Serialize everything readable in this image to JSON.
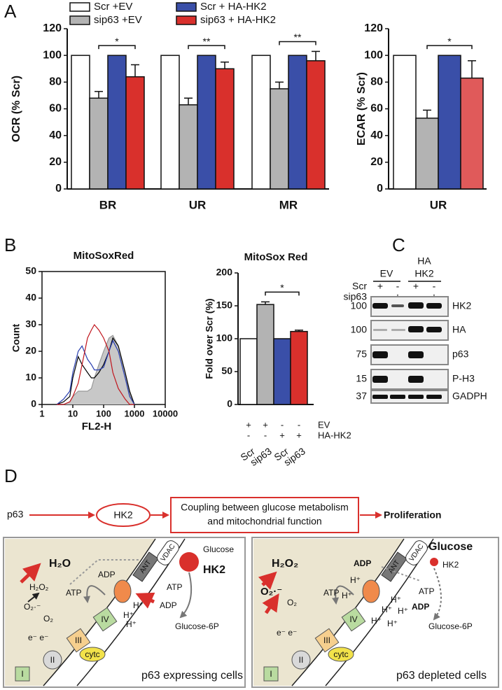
{
  "panel_labels": [
    "A",
    "B",
    "C",
    "D"
  ],
  "chart_data": [
    {
      "type": "bar",
      "y_label": "OCR (% Scr)",
      "categories": [
        "BR",
        "UR",
        "MR"
      ],
      "series": [
        {
          "name": "Scr +EV",
          "color": "#ffffff",
          "values": [
            100,
            100,
            100
          ]
        },
        {
          "name": "sip63 +EV",
          "color": "#b3b3b3",
          "values": [
            68,
            63,
            75
          ],
          "errors": [
            5,
            5,
            5
          ]
        },
        {
          "name": "Scr + HA-HK2",
          "color": "#3a4fa8",
          "values": [
            100,
            100,
            100
          ]
        },
        {
          "name": "sip63 + HA-HK2",
          "color": "#d9302c",
          "values": [
            84,
            90,
            96
          ],
          "errors": [
            9,
            5,
            7
          ]
        }
      ],
      "ylim": [
        0,
        120
      ],
      "yticks": [
        0,
        20,
        40,
        60,
        80,
        100,
        120
      ],
      "significance": [
        "*",
        "**",
        "**"
      ]
    },
    {
      "type": "bar",
      "y_label": "ECAR (% Scr)",
      "categories": [
        "UR"
      ],
      "series": [
        {
          "color": "#ffffff",
          "values": [
            100
          ]
        },
        {
          "color": "#b3b3b3",
          "values": [
            53
          ],
          "errors": [
            6
          ]
        },
        {
          "color": "#3a4fa8",
          "values": [
            100
          ]
        },
        {
          "color": "#e05a5a",
          "values": [
            83
          ],
          "errors": [
            13
          ]
        }
      ],
      "ylim": [
        0,
        120
      ],
      "yticks": [
        0,
        20,
        40,
        60,
        80,
        100,
        120
      ],
      "significance": [
        "*"
      ]
    },
    {
      "type": "line",
      "title": "MitoSoxRed",
      "x_label": "FL2-H",
      "y_label": "Count",
      "xscale": "log",
      "x": [
        3,
        5,
        8,
        10,
        15,
        20,
        30,
        40,
        50,
        70,
        100,
        150,
        200,
        300,
        500,
        700,
        1000
      ],
      "series": [
        {
          "color": "#c8c8c8",
          "filled": true,
          "values": [
            0,
            0,
            1,
            3,
            5,
            5,
            5,
            6,
            10,
            15,
            20,
            25,
            26,
            22,
            12,
            4,
            0
          ]
        },
        {
          "color": "#000000",
          "values": [
            0,
            1,
            3,
            10,
            18,
            15,
            12,
            10,
            10,
            12,
            15,
            20,
            25,
            22,
            12,
            5,
            0
          ]
        },
        {
          "color": "#2a3fb0",
          "values": [
            0,
            2,
            5,
            12,
            20,
            22,
            17,
            15,
            13,
            13,
            14,
            20,
            24,
            20,
            10,
            3,
            0
          ]
        },
        {
          "color": "#c0141c",
          "values": [
            0,
            0,
            1,
            3,
            8,
            15,
            25,
            28,
            30,
            28,
            25,
            20,
            12,
            6,
            2,
            0,
            0
          ]
        }
      ],
      "xlim": [
        1,
        10000
      ],
      "xticks": [
        1,
        10,
        100,
        1000,
        10000
      ],
      "ylim": [
        0,
        50
      ],
      "yticks": [
        0,
        10,
        20,
        30,
        40,
        50
      ]
    },
    {
      "type": "bar",
      "title": "MitoSox Red",
      "y_label": "Fold over Scr (%)",
      "categories": [
        "Scr",
        "sip63",
        "Scr",
        "sip63"
      ],
      "values": [
        100,
        152,
        100,
        111
      ],
      "errors": [
        null,
        4,
        null,
        2
      ],
      "colors": [
        "#ffffff",
        "#b3b3b3",
        "#3a4fa8",
        "#d9302c"
      ],
      "conditions": [
        {
          "name": "EV",
          "values": [
            "+",
            "+",
            "-",
            "-"
          ]
        },
        {
          "name": "HA-HK2",
          "values": [
            "-",
            "-",
            "+",
            "+"
          ]
        }
      ],
      "ylim": [
        0,
        200
      ],
      "yticks": [
        0,
        50,
        100,
        150,
        200
      ],
      "significance": [
        "*"
      ]
    }
  ],
  "blot": {
    "groups": [
      [
        "EV"
      ],
      [
        "HA",
        "HK2"
      ]
    ],
    "conditions": [
      {
        "name": "Scr",
        "values": [
          "+",
          "-",
          "+",
          "-"
        ]
      },
      {
        "name": "sip63",
        "values": [
          "-",
          "+",
          "-",
          "+"
        ]
      }
    ],
    "rows": [
      {
        "marker": 100,
        "label": "HK2"
      },
      {
        "marker": 100,
        "label": "HA"
      },
      {
        "marker": 75,
        "label": "p63"
      },
      {
        "marker": 15,
        "label": "P-H3"
      },
      {
        "marker": 37,
        "label": "GADPH"
      }
    ]
  },
  "diagram": {
    "pathway": [
      "p63",
      "HK2",
      "Coupling between glucose metabolism",
      "and mitochondrial function",
      "Proliferation"
    ],
    "left_cell": [
      "H₂O",
      "H₂O₂",
      "O₂·⁻",
      "O₂",
      "e⁻ e⁻",
      "ATP",
      "ADP",
      "ANT",
      "VDAC",
      "Glucose",
      "HK2",
      "ATP",
      "ADP",
      "H⁺",
      "H⁺",
      "H⁺",
      "Glucose-6P",
      "IV",
      "III",
      "cytc",
      "II",
      "I",
      "p63 expressing cells"
    ],
    "right_cell": [
      "H₂O₂",
      "O₂·⁻",
      "O₂",
      "e⁻ e⁻",
      "ADP",
      "ATP",
      "H⁺",
      "H⁺",
      "ANT",
      "VDAC",
      "Glucose",
      "HK2",
      "ATP",
      "ADP",
      "H⁺",
      "H⁺",
      "H⁺",
      "H⁺",
      "H⁺",
      "Glucose-6P",
      "IV",
      "III",
      "cytc",
      "II",
      "I",
      "p63 depleted cells"
    ]
  }
}
